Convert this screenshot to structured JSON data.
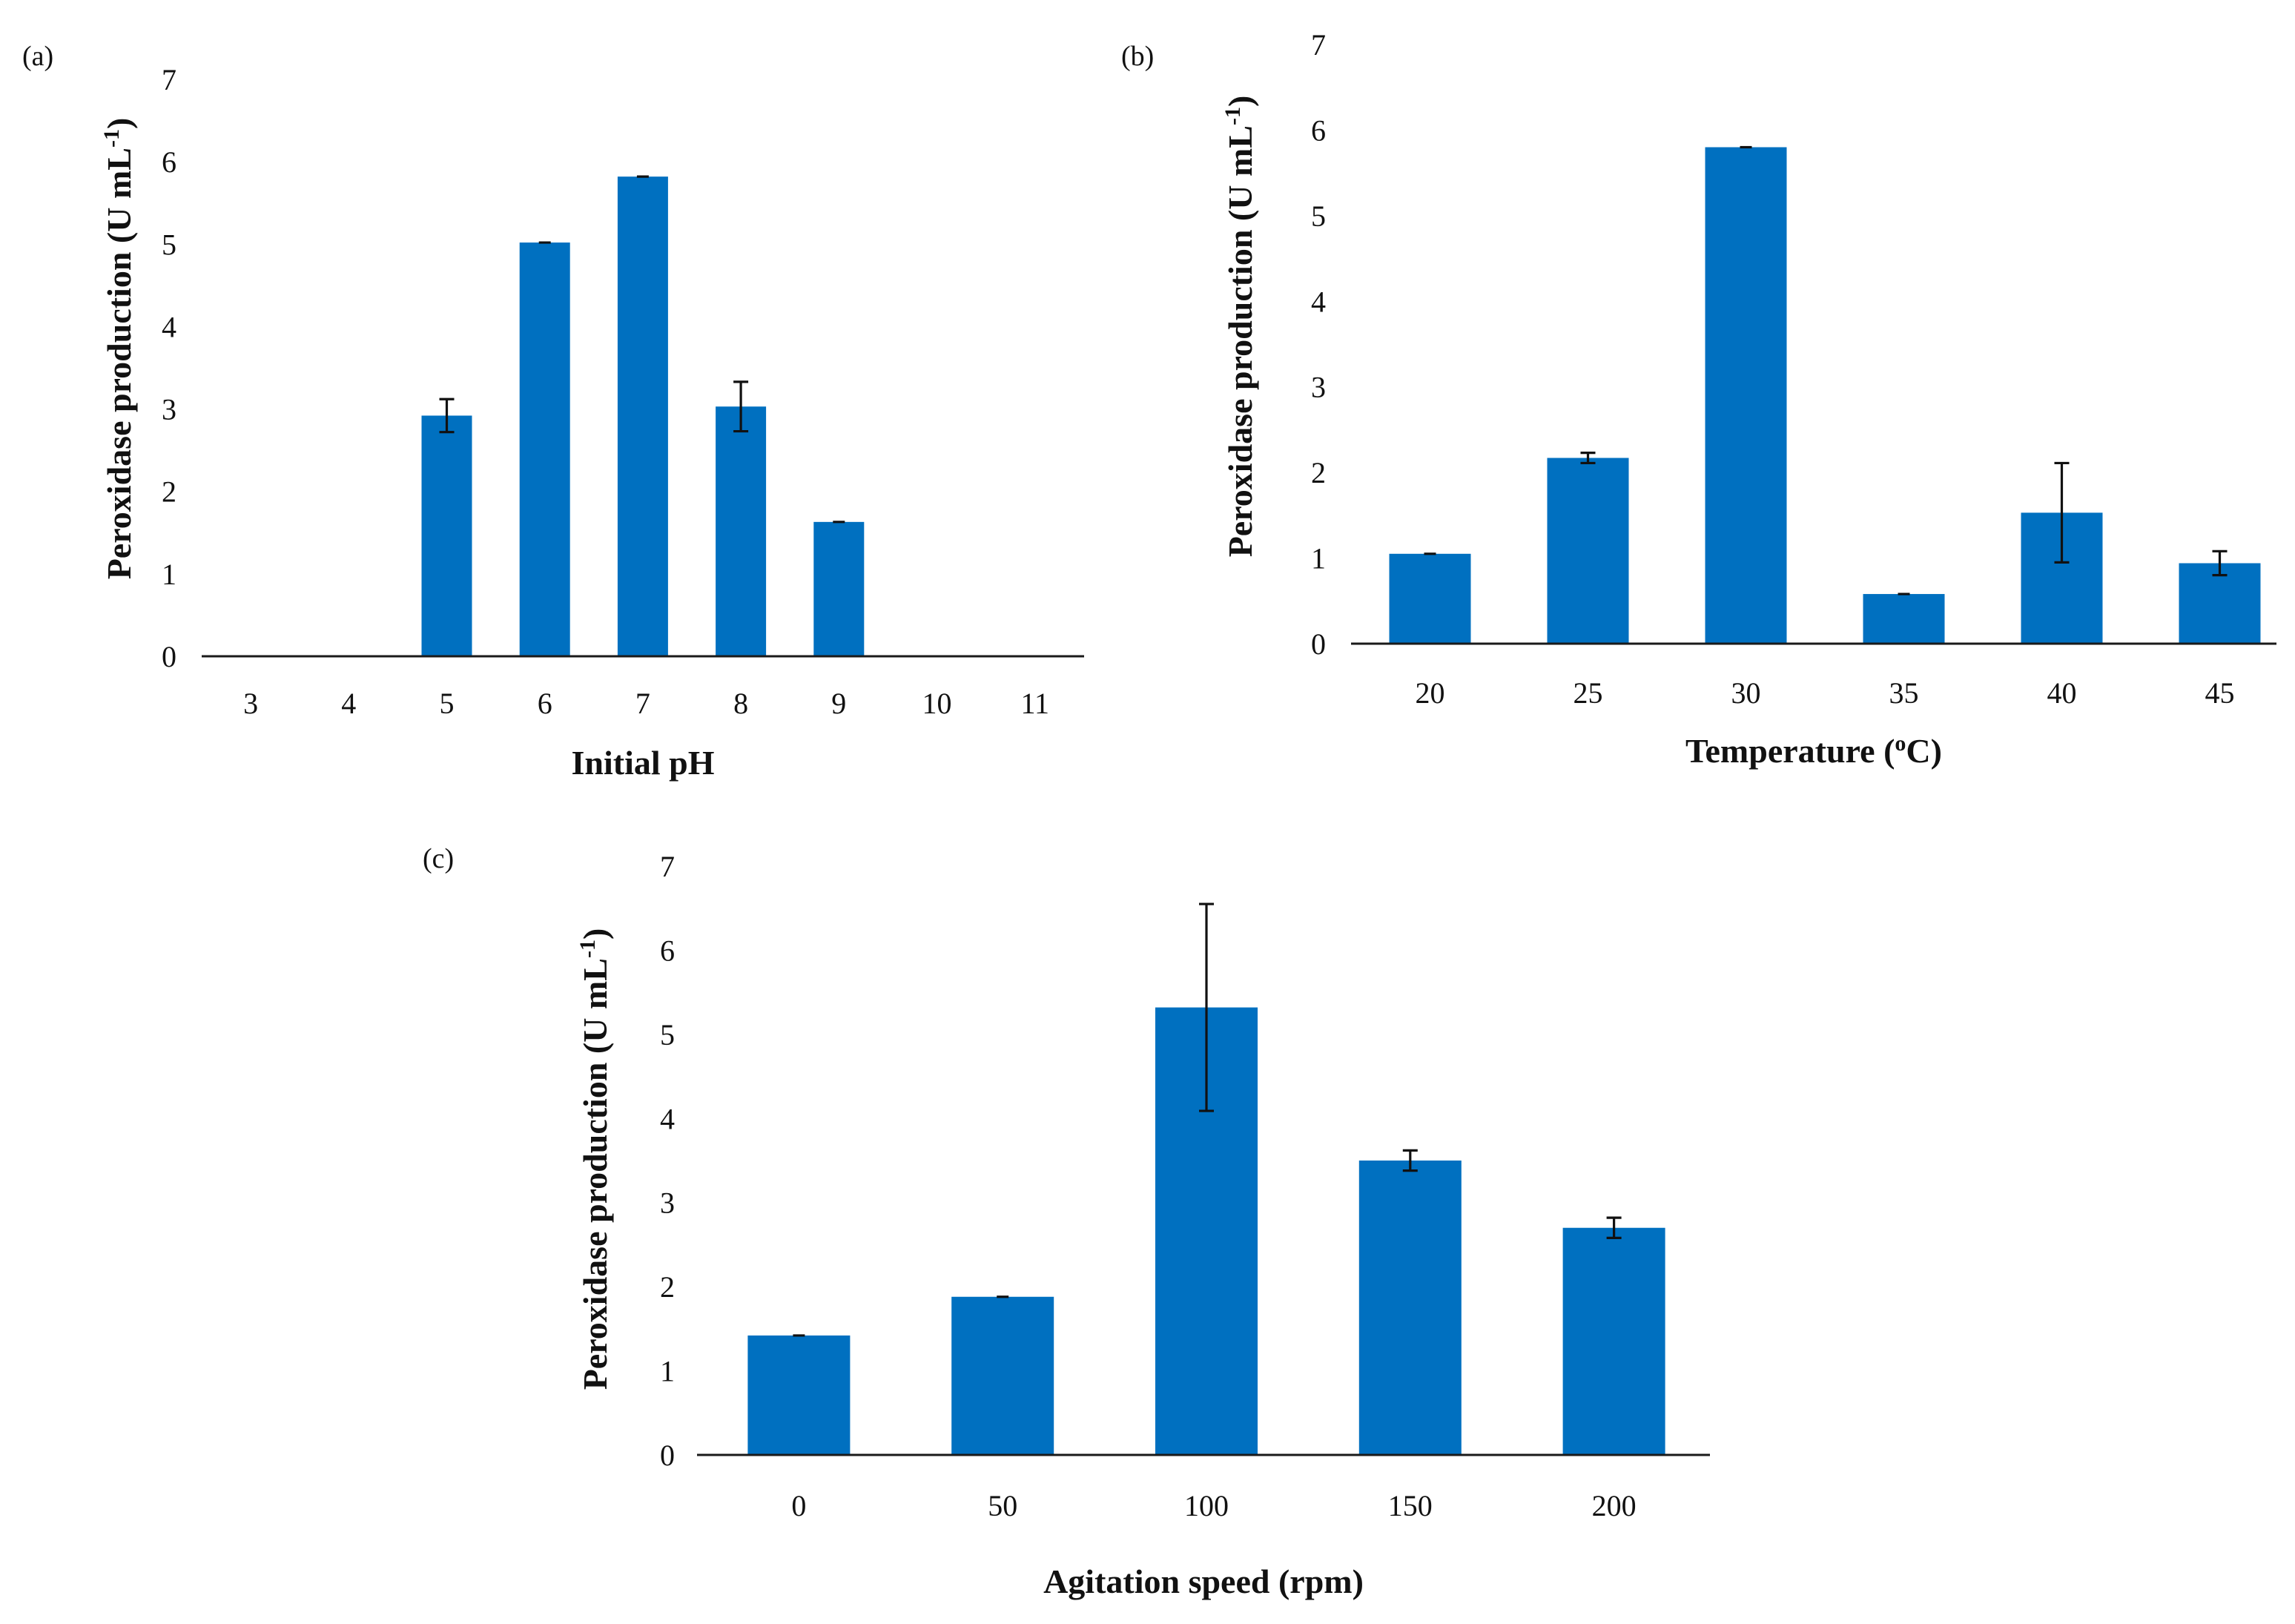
{
  "colors": {
    "bar": "#0070c0",
    "axis": "#1a1a1a",
    "text": "#111111"
  },
  "chart_data": [
    {
      "panel_label": "(a)",
      "type": "bar",
      "title": "",
      "xlabel": "Initial pH",
      "ylabel": "Peroxidase production (U mL",
      "ylabel_sup": "-1",
      "ylabel_end": ")",
      "ylim": [
        0,
        7
      ],
      "yticks": [
        "0",
        "1",
        "2",
        "3",
        "4",
        "5",
        "6",
        "7"
      ],
      "grid": false,
      "categories": [
        "3",
        "4",
        "5",
        "6",
        "7",
        "8",
        "9",
        "10",
        "11"
      ],
      "values": [
        0,
        0,
        2.92,
        5.02,
        5.82,
        3.03,
        1.63,
        0,
        0
      ],
      "errors": [
        0,
        0,
        0.2,
        0,
        0,
        0.3,
        0,
        0,
        0
      ]
    },
    {
      "panel_label": "(b)",
      "type": "bar",
      "title": "",
      "xlabel": "Temperature (",
      "xlabel_sup": "o",
      "xlabel_end": "C)",
      "ylabel": "Peroxidase  production (U mL",
      "ylabel_sup": "-1",
      "ylabel_end": ")",
      "ylim": [
        0,
        7
      ],
      "yticks": [
        "0",
        "1",
        "2",
        "3",
        "4",
        "5",
        "6",
        "7"
      ],
      "grid": false,
      "categories": [
        "20",
        "25",
        "30",
        "35",
        "40",
        "45"
      ],
      "values": [
        1.05,
        2.17,
        5.8,
        0.58,
        1.53,
        0.94
      ],
      "errors": [
        0,
        0.06,
        0,
        0,
        0.58,
        0.14
      ]
    },
    {
      "panel_label": "(c)",
      "type": "bar",
      "title": "",
      "xlabel": "Agitation speed (rpm)",
      "ylabel": "Peroxidase production (U mL",
      "ylabel_sup": "-1",
      "ylabel_end": ")",
      "ylim": [
        0,
        7
      ],
      "yticks": [
        "0",
        "1",
        "2",
        "3",
        "4",
        "5",
        "6",
        "7"
      ],
      "grid": false,
      "categories": [
        "0",
        "50",
        "100",
        "150",
        "200"
      ],
      "values": [
        1.42,
        1.88,
        5.32,
        3.5,
        2.7
      ],
      "errors": [
        0,
        0,
        1.23,
        0.12,
        0.12
      ]
    }
  ]
}
